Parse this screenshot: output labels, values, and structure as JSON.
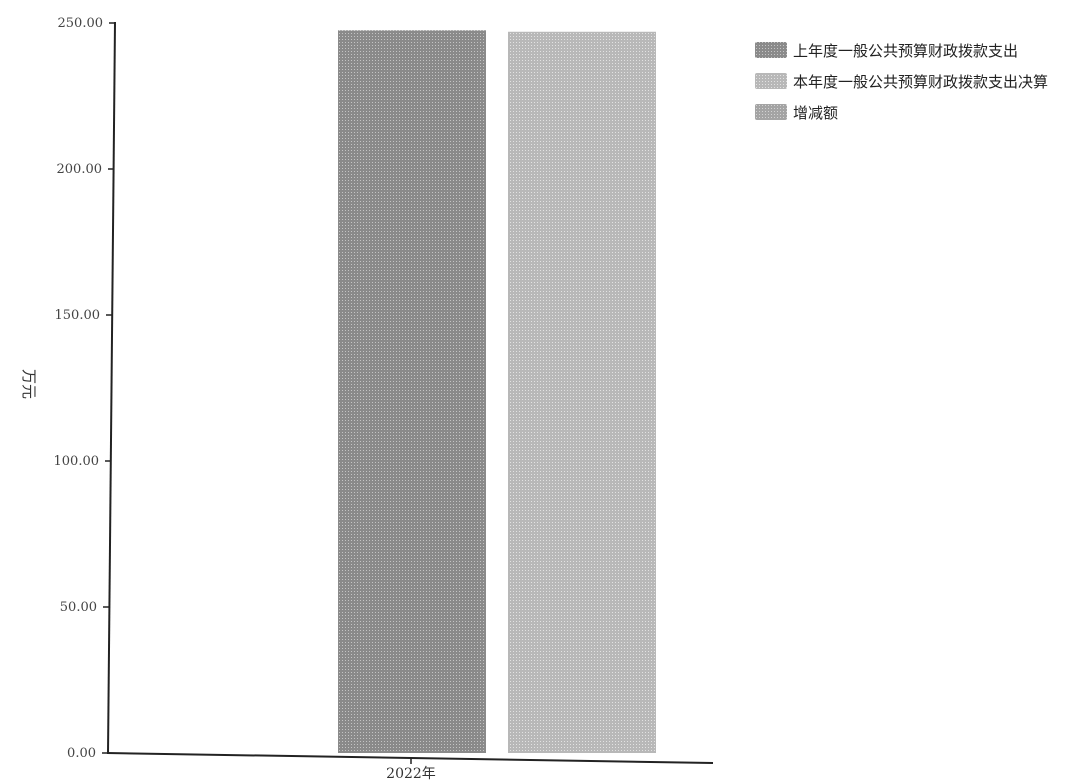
{
  "chart_data": {
    "type": "bar",
    "categories": [
      "2022年"
    ],
    "series": [
      {
        "name": "上年度一般公共预算财政拨款支出",
        "values": [
          247.5
        ]
      },
      {
        "name": "本年度一般公共预算财政拨款支出决算",
        "values": [
          247.0
        ]
      },
      {
        "name": "增减额",
        "values": [
          -0.5
        ]
      }
    ],
    "ylabel": "万元",
    "ylim": [
      0,
      250
    ],
    "yticks": [
      "0.00",
      "50.00",
      "100.00",
      "150.00",
      "200.00",
      "250.00"
    ],
    "legend_position": "top-right",
    "grid": false,
    "colors": [
      "#8a8a8a",
      "#b5b5b5",
      "#a8a8a8"
    ]
  }
}
